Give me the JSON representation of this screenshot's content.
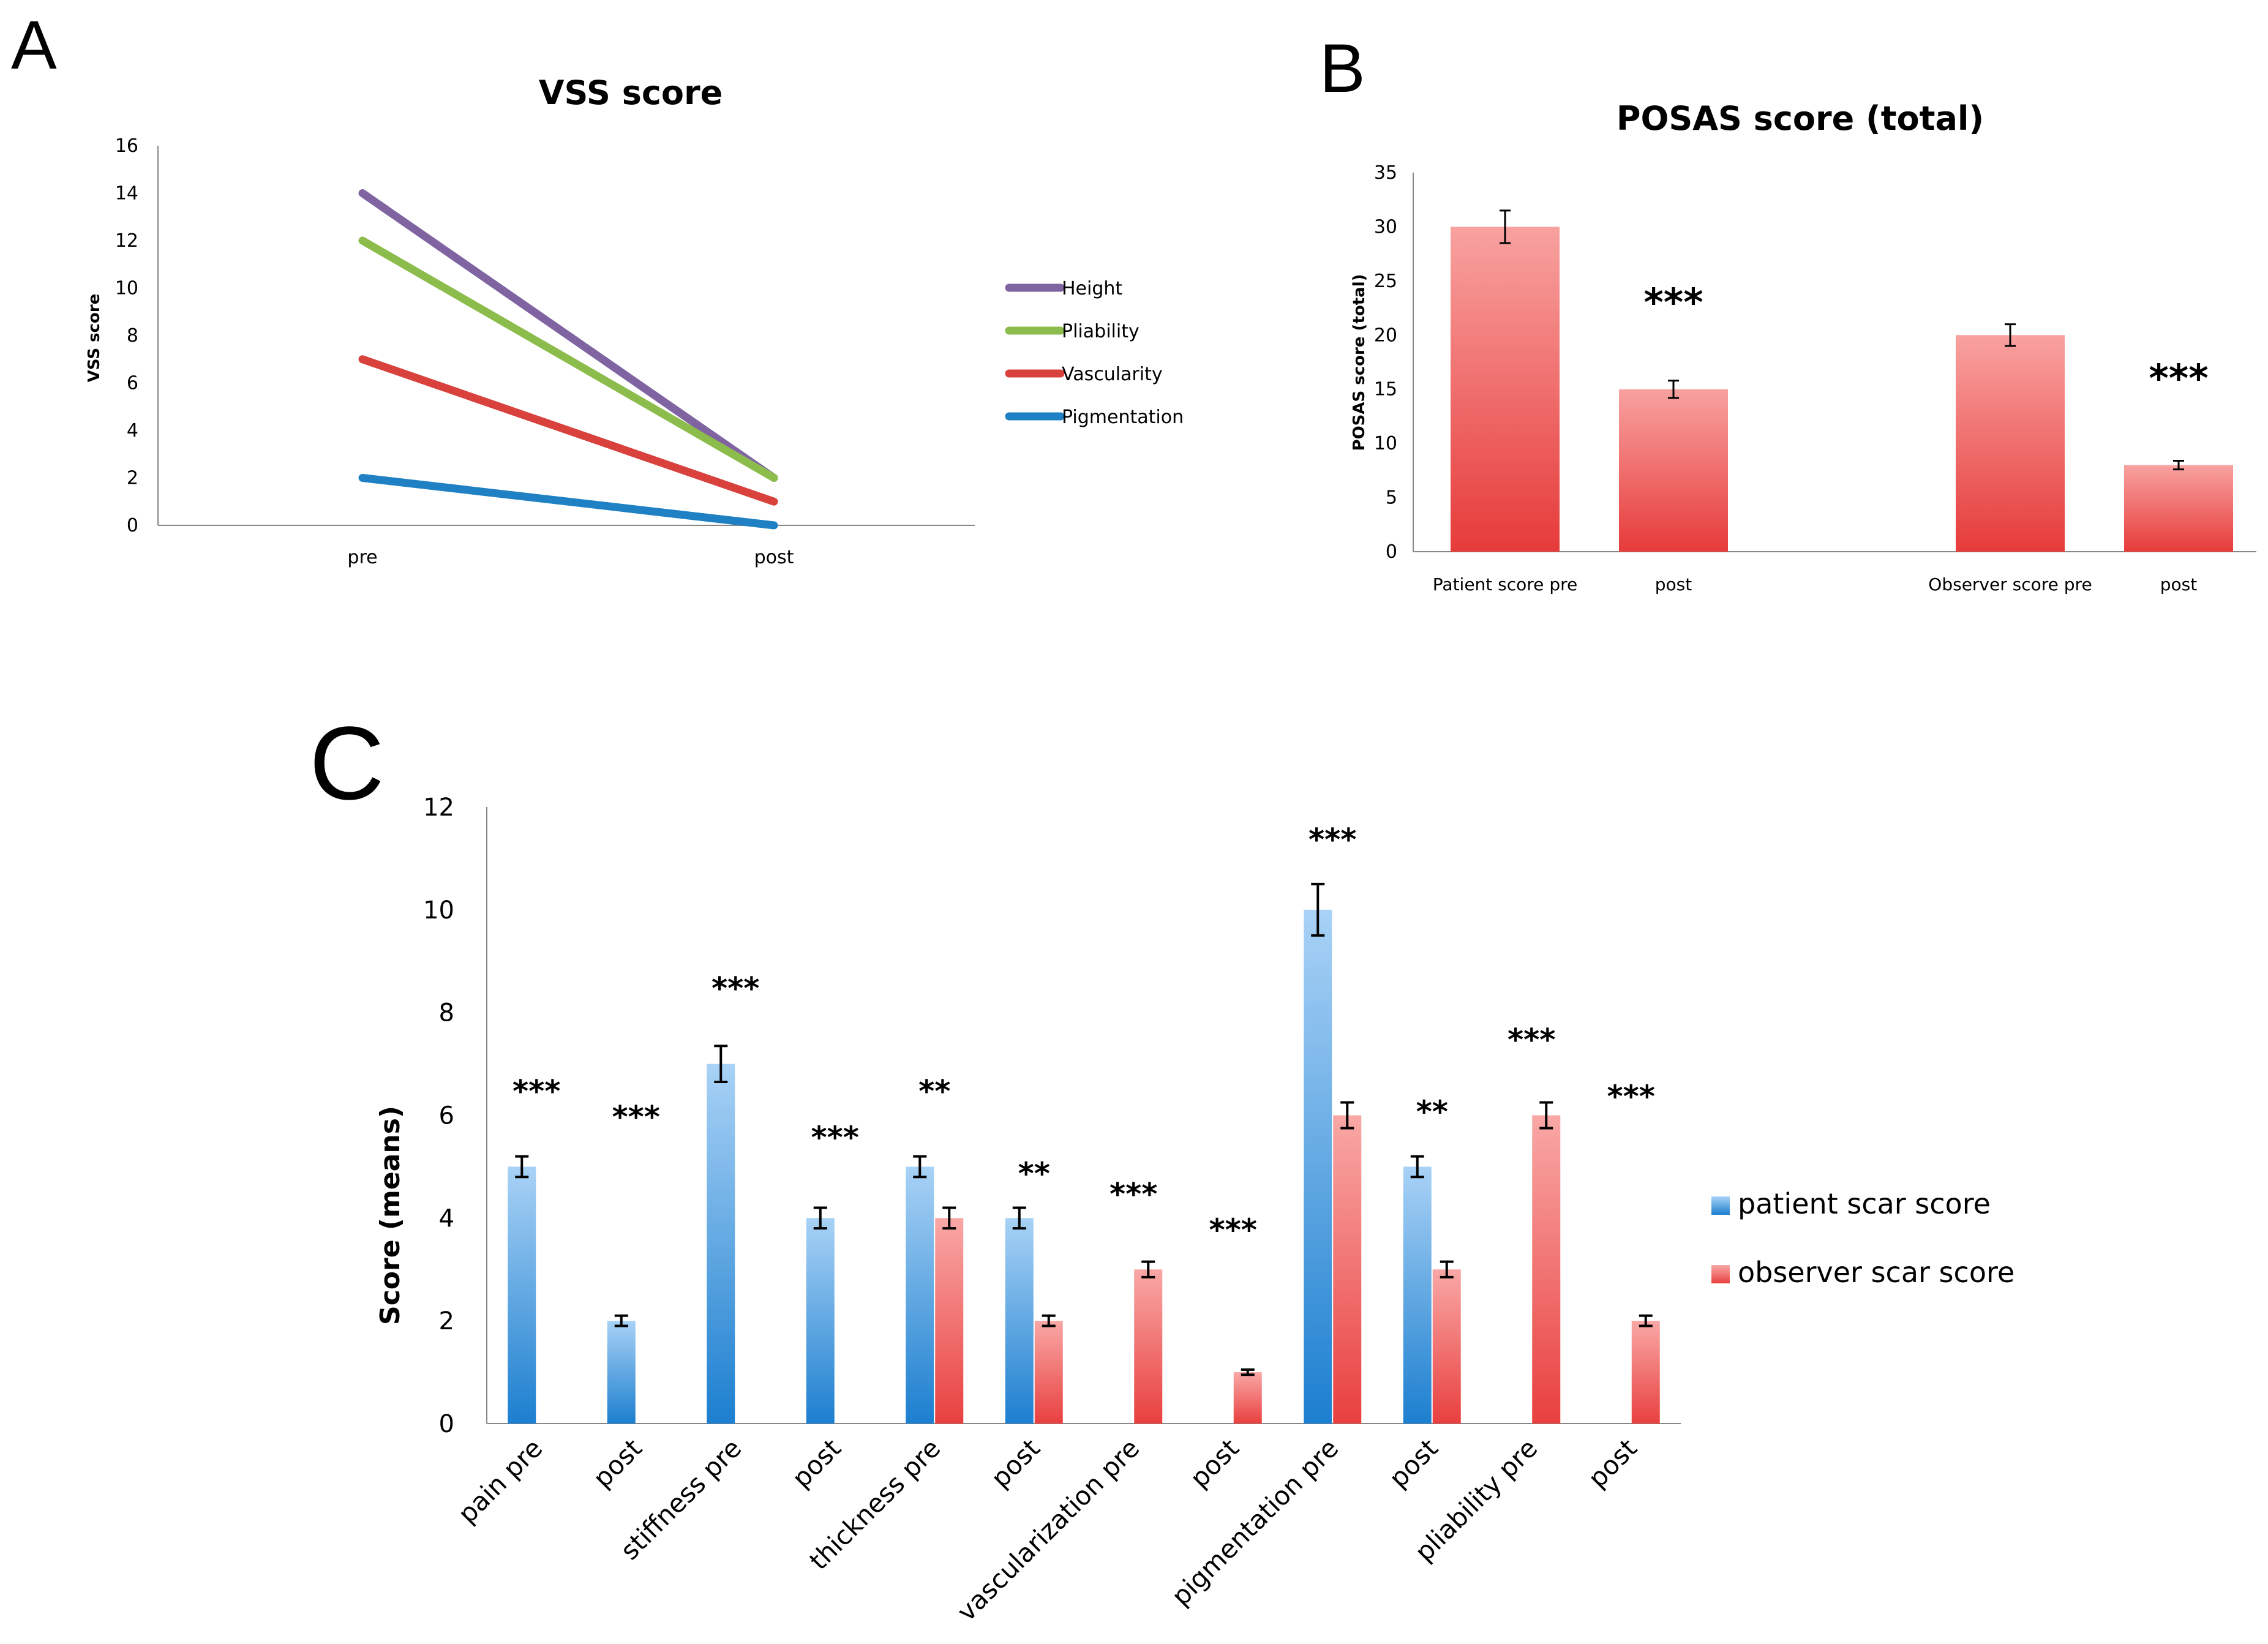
{
  "panel_labels": {
    "a": "A",
    "b": "B",
    "c": "C"
  },
  "chart_data": [
    {
      "id": "A",
      "type": "line",
      "title": "VSS score",
      "ylabel": "VSS score",
      "xlabel": "",
      "categories": [
        "pre",
        "post"
      ],
      "ylim": [
        0,
        16
      ],
      "yticks": [
        0,
        2,
        4,
        6,
        8,
        10,
        12,
        14,
        16
      ],
      "legend_position": "right",
      "series": [
        {
          "name": "Height",
          "values": [
            14,
            2
          ],
          "color": "#8064a2"
        },
        {
          "name": "Pliability",
          "values": [
            12,
            2
          ],
          "color": "#8cbd4c"
        },
        {
          "name": "Vascularity",
          "values": [
            7,
            1
          ],
          "color": "#d9413d"
        },
        {
          "name": "Pigmentation",
          "values": [
            2,
            0
          ],
          "color": "#1f81c4"
        }
      ]
    },
    {
      "id": "B",
      "type": "bar",
      "title": "POSAS score (total)",
      "ylabel": "POSAS score (total)",
      "xlabel": "",
      "categories": [
        "Patient score pre",
        "post",
        "Observer score pre",
        "post"
      ],
      "values": [
        30,
        15,
        20,
        8
      ],
      "errors": [
        1.5,
        0.8,
        1.0,
        0.4
      ],
      "significance": [
        "",
        "***",
        "",
        "***"
      ],
      "ylim": [
        0,
        35
      ],
      "yticks": [
        0,
        5,
        10,
        15,
        20,
        25,
        30,
        35
      ],
      "color": "#e8403f"
    },
    {
      "id": "C",
      "type": "bar",
      "title": "",
      "ylabel": "Score (means)",
      "xlabel": "",
      "categories": [
        "pain pre",
        "post",
        "stiffness pre",
        "post",
        "thickness pre",
        "post",
        "vascularization pre",
        "post",
        "pigmentation pre",
        "post",
        "pliability pre",
        "post"
      ],
      "ylim": [
        0,
        12
      ],
      "yticks": [
        0,
        2,
        4,
        6,
        8,
        10,
        12
      ],
      "legend_position": "right",
      "series": [
        {
          "name": "patient scar score",
          "color": "#1c7fcf",
          "values": [
            5,
            2,
            7,
            4,
            5,
            4,
            null,
            null,
            10,
            5,
            null,
            null
          ],
          "errors": [
            0.2,
            0.1,
            0.35,
            0.2,
            0.2,
            0.2,
            null,
            null,
            0.5,
            0.2,
            null,
            null
          ]
        },
        {
          "name": "observer scar score",
          "color": "#e8403f",
          "values": [
            null,
            null,
            null,
            null,
            4,
            2,
            3,
            1,
            6,
            3,
            6,
            2
          ],
          "errors": [
            null,
            null,
            null,
            null,
            0.2,
            0.1,
            0.15,
            0.05,
            0.25,
            0.15,
            0.25,
            0.1
          ]
        }
      ],
      "significance": [
        {
          "text": "***",
          "value": 6.5
        },
        {
          "text": "***",
          "value": 6.0
        },
        {
          "text": "***",
          "value": 8.5
        },
        {
          "text": "***",
          "value": 5.6
        },
        {
          "text": "**",
          "value": 6.5
        },
        {
          "text": "**",
          "value": 4.9
        },
        {
          "text": "***",
          "value": 4.5
        },
        {
          "text": "***",
          "value": 3.8
        },
        {
          "text": "***",
          "value": 11.4
        },
        {
          "text": "**",
          "value": 6.1
        },
        {
          "text": "***",
          "value": 7.5
        },
        {
          "text": "***",
          "value": 6.4
        }
      ]
    }
  ]
}
